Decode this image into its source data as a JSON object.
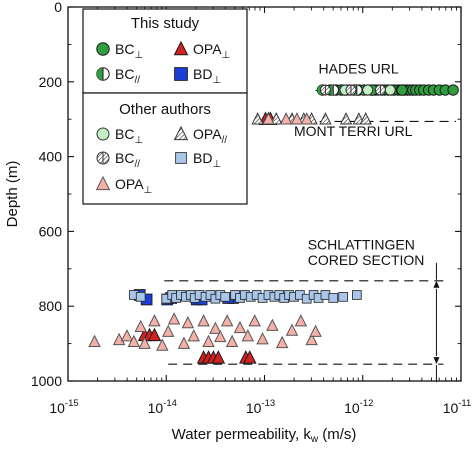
{
  "chart_data": {
    "type": "scatter",
    "xlabel": "Water permeability, k",
    "xlabel_sub": "w",
    "xlabel_unit": " (m/s)",
    "ylabel": "Depth (m)",
    "xscale": "log",
    "xlim": [
      1e-15,
      1e-11
    ],
    "ylim": [
      0,
      1000
    ],
    "y_inverted": true,
    "x_ticks": [
      {
        "base": "10",
        "exp": "-15",
        "v": -15
      },
      {
        "base": "10",
        "exp": "-14",
        "v": -14
      },
      {
        "base": "10",
        "exp": "-13",
        "v": -13
      },
      {
        "base": "10",
        "exp": "-12",
        "v": -12
      },
      {
        "base": "10",
        "exp": "-11",
        "v": -11
      }
    ],
    "y_ticks": [
      0,
      200,
      400,
      600,
      800,
      1000
    ],
    "legend": {
      "placement": "top-left",
      "group1_title": "This study",
      "group2_title": "Other authors",
      "entries1": [
        {
          "series": "bc_perp_this",
          "main": "BC",
          "sub": "⊥"
        },
        {
          "series": "opa_perp_this",
          "main": "OPA",
          "sub": "⊥"
        },
        {
          "series": "bc_par_this",
          "main": "BC",
          "sub": "//"
        },
        {
          "series": "bd_perp_this",
          "main": "BD",
          "sub": "⊥"
        }
      ],
      "entries2": [
        {
          "series": "bc_perp_other",
          "main": "BC",
          "sub": "⊥"
        },
        {
          "series": "opa_par_other",
          "main": "OPA",
          "sub": "//"
        },
        {
          "series": "bc_par_other",
          "main": "BC",
          "sub": "//"
        },
        {
          "series": "bd_perp_other",
          "main": "BD",
          "sub": "⊥"
        },
        {
          "series": "opa_perp_other",
          "main": "OPA",
          "sub": "⊥"
        }
      ]
    },
    "annotations": [
      {
        "text": "HADES URL",
        "anchor": "left",
        "x": -12.45,
        "y": 178
      },
      {
        "text": "MONT TERRI URL",
        "anchor": "left",
        "x": -12.7,
        "y": 345
      },
      {
        "text": "SCHLATTINGEN",
        "anchor": "left",
        "x": -12.56,
        "y": 648
      },
      {
        "text": "CORED SECTION",
        "anchor": "left",
        "x": -12.56,
        "y": 690
      }
    ],
    "guide_lines": [
      {
        "depth": 223,
        "x1": -12.48,
        "x2": -11.05
      },
      {
        "depth": 306,
        "x1": -13.05,
        "x2": -11.05
      },
      {
        "depth": 732,
        "x1": -14.02,
        "x2": -11.18
      },
      {
        "depth": 955,
        "x1": -13.98,
        "x2": -11.18
      }
    ],
    "bracket": {
      "x": -11.25,
      "y1": 732,
      "y2": 955
    },
    "series": [
      {
        "id": "bc_perp_this",
        "marker": "circle",
        "fill": "#2e9e3e",
        "stroke": "#1a1a1a",
        "size": 5.2,
        "points": [
          [
            -12.33,
            222
          ],
          [
            -12.27,
            222
          ],
          [
            -12.22,
            222
          ],
          [
            -12.17,
            222
          ],
          [
            -12.13,
            222
          ],
          [
            -12.09,
            222
          ],
          [
            -12.04,
            222
          ],
          [
            -11.99,
            222
          ],
          [
            -11.95,
            222
          ],
          [
            -11.91,
            222
          ],
          [
            -11.87,
            222
          ],
          [
            -11.84,
            222
          ],
          [
            -11.81,
            222
          ],
          [
            -11.78,
            222
          ],
          [
            -11.74,
            222
          ],
          [
            -11.71,
            222
          ],
          [
            -11.68,
            222
          ],
          [
            -11.64,
            222
          ],
          [
            -11.61,
            222
          ],
          [
            -11.58,
            222
          ],
          [
            -11.55,
            222
          ],
          [
            -11.52,
            222
          ],
          [
            -11.49,
            222
          ],
          [
            -11.46,
            222
          ],
          [
            -11.42,
            222
          ],
          [
            -11.38,
            222
          ],
          [
            -11.33,
            222
          ],
          [
            -11.28,
            222
          ],
          [
            -11.22,
            222
          ],
          [
            -11.16,
            222
          ],
          [
            -11.08,
            222
          ],
          [
            -11.6,
            222
          ],
          [
            -11.9,
            222
          ]
        ]
      },
      {
        "id": "bc_par_this",
        "marker": "half-circle",
        "fill": "#2e9e3e",
        "stroke": "#1a1a1a",
        "size": 5.2,
        "points": [
          [
            -12.41,
            222
          ],
          [
            -12.3,
            222
          ],
          [
            -12.19,
            222
          ],
          [
            -12.06,
            222
          ]
        ]
      },
      {
        "id": "opa_perp_this",
        "marker": "triangle",
        "fill": "#d32020",
        "stroke": "#1a1a1a",
        "size": 6,
        "points": [
          [
            -14.22,
            878
          ],
          [
            -14.17,
            878
          ],
          [
            -14.12,
            878
          ],
          [
            -13.62,
            938
          ],
          [
            -13.57,
            938
          ],
          [
            -13.52,
            938
          ],
          [
            -13.47,
            938
          ],
          [
            -13.19,
            938
          ],
          [
            -13.15,
            938
          ],
          [
            -12.99,
            300
          ],
          [
            -12.96,
            300
          ],
          [
            -12.94,
            300
          ]
        ]
      },
      {
        "id": "bd_perp_this",
        "marker": "square",
        "fill": "#1a3fd8",
        "stroke": "#1a1a1a",
        "size": 5.4,
        "points": [
          [
            -14.27,
            770
          ],
          [
            -14.2,
            782
          ],
          [
            -13.99,
            782
          ],
          [
            -13.95,
            778
          ],
          [
            -13.69,
            782
          ],
          [
            -13.64,
            782
          ],
          [
            -13.32,
            778
          ],
          [
            -13.37,
            778
          ]
        ]
      },
      {
        "id": "bc_perp_other",
        "marker": "circle",
        "fill": "#c4efc4",
        "stroke": "#333",
        "size": 5,
        "points": [
          [
            -12.18,
            222
          ],
          [
            -11.95,
            222
          ],
          [
            -11.72,
            222
          ]
        ]
      },
      {
        "id": "bc_par_other",
        "marker": "hatched-circle",
        "fill": "#ffffff",
        "stroke": "#333",
        "size": 5,
        "points": [
          [
            -12.38,
            222
          ],
          [
            -12.12,
            222
          ],
          [
            -11.82,
            222
          ]
        ]
      },
      {
        "id": "opa_par_other",
        "marker": "hatched-triangle",
        "fill": "#ffffff",
        "stroke": "#333",
        "size": 5.4,
        "points": [
          [
            -13.07,
            300
          ],
          [
            -12.88,
            300
          ],
          [
            -12.72,
            300
          ],
          [
            -12.6,
            300
          ],
          [
            -12.52,
            300
          ],
          [
            -12.38,
            300
          ],
          [
            -12.17,
            300
          ],
          [
            -12.04,
            300
          ],
          [
            -11.97,
            300
          ]
        ]
      },
      {
        "id": "opa_perp_other",
        "marker": "triangle",
        "fill": "#f5b0a8",
        "stroke": "#555",
        "size": 5.4,
        "points": [
          [
            -14.73,
            895
          ],
          [
            -14.48,
            890
          ],
          [
            -14.4,
            880
          ],
          [
            -14.33,
            895
          ],
          [
            -14.26,
            855
          ],
          [
            -14.22,
            900
          ],
          [
            -14.12,
            840
          ],
          [
            -14.04,
            905
          ],
          [
            -13.98,
            868
          ],
          [
            -13.92,
            835
          ],
          [
            -13.82,
            900
          ],
          [
            -13.78,
            845
          ],
          [
            -13.72,
            880
          ],
          [
            -13.62,
            840
          ],
          [
            -13.57,
            895
          ],
          [
            -13.5,
            860
          ],
          [
            -13.45,
            882
          ],
          [
            -13.38,
            840
          ],
          [
            -13.33,
            895
          ],
          [
            -13.25,
            858
          ],
          [
            -13.17,
            880
          ],
          [
            -13.1,
            840
          ],
          [
            -13.02,
            888
          ],
          [
            -12.92,
            852
          ],
          [
            -12.82,
            898
          ],
          [
            -12.72,
            865
          ],
          [
            -12.63,
            840
          ],
          [
            -12.52,
            890
          ],
          [
            -12.48,
            868
          ],
          [
            -12.67,
            300
          ],
          [
            -12.78,
            300
          ],
          [
            -12.57,
            300
          ],
          [
            -12.96,
            300
          ]
        ]
      },
      {
        "id": "bd_perp_other",
        "marker": "square",
        "fill": "#a9c7ea",
        "stroke": "#333",
        "size": 4.4,
        "points": [
          [
            -14.33,
            770
          ],
          [
            -14.26,
            775
          ],
          [
            -14.0,
            780
          ],
          [
            -13.94,
            770
          ],
          [
            -13.9,
            778
          ],
          [
            -13.85,
            770
          ],
          [
            -13.8,
            775
          ],
          [
            -13.75,
            770
          ],
          [
            -13.71,
            778
          ],
          [
            -13.66,
            770
          ],
          [
            -13.6,
            775
          ],
          [
            -13.55,
            770
          ],
          [
            -13.5,
            780
          ],
          [
            -13.45,
            770
          ],
          [
            -13.4,
            775
          ],
          [
            -13.3,
            770
          ],
          [
            -13.25,
            778
          ],
          [
            -13.2,
            770
          ],
          [
            -13.14,
            775
          ],
          [
            -13.08,
            770
          ],
          [
            -13.02,
            778
          ],
          [
            -12.96,
            770
          ],
          [
            -12.9,
            775
          ],
          [
            -12.85,
            770
          ],
          [
            -12.8,
            778
          ],
          [
            -12.75,
            770
          ],
          [
            -12.7,
            775
          ],
          [
            -12.64,
            770
          ],
          [
            -12.57,
            780
          ],
          [
            -12.5,
            770
          ],
          [
            -12.45,
            778
          ],
          [
            -12.38,
            770
          ],
          [
            -12.3,
            778
          ],
          [
            -12.2,
            775
          ],
          [
            -12.06,
            770
          ]
        ]
      }
    ]
  }
}
